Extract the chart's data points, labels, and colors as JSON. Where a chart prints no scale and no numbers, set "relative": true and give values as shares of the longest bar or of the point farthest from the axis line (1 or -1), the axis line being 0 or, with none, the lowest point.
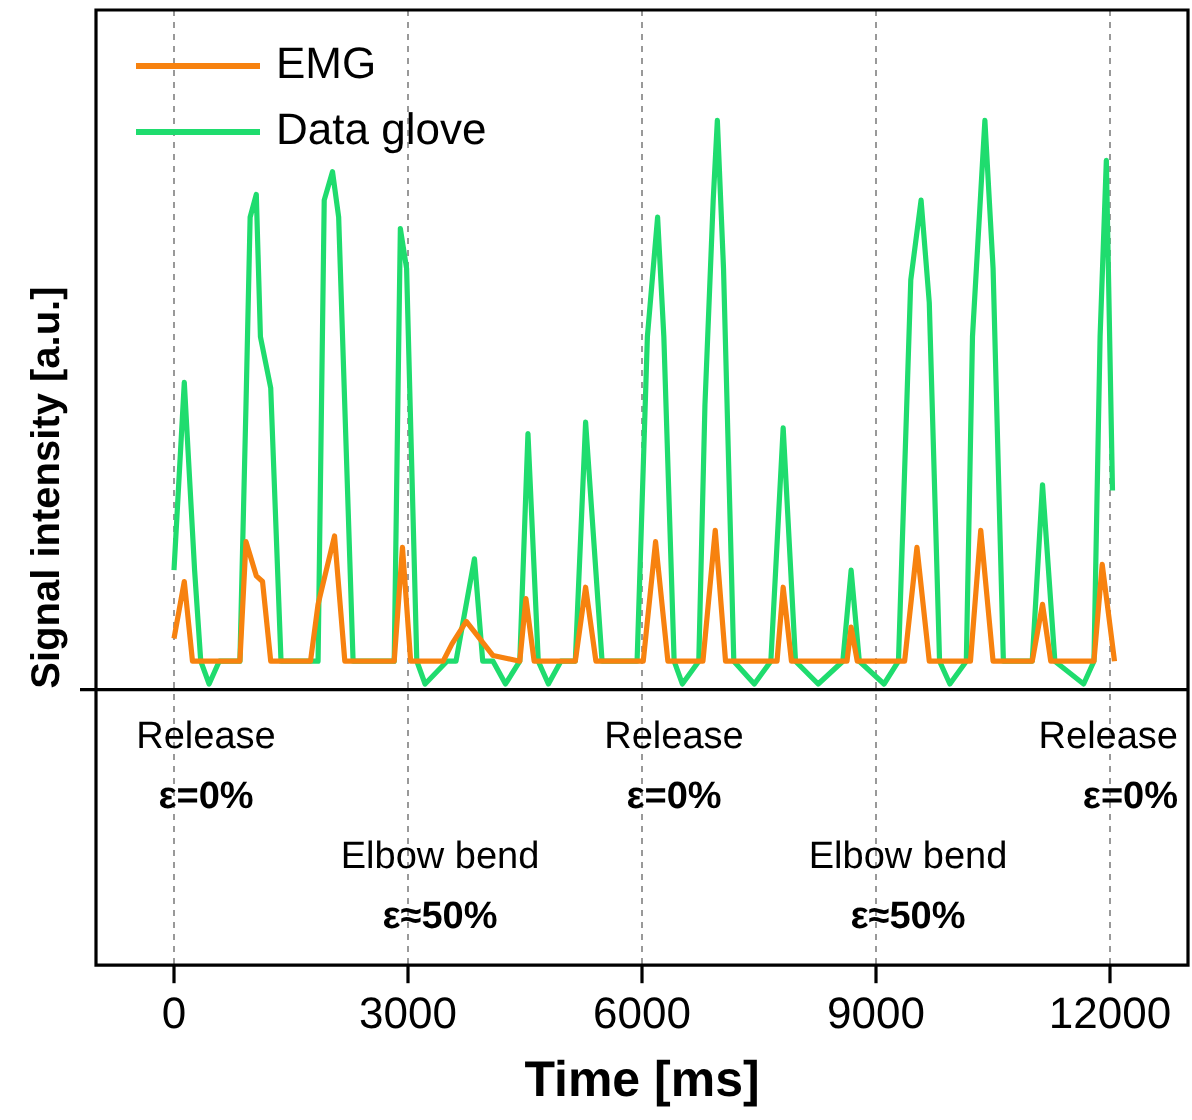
{
  "chart_data": {
    "type": "line",
    "xlabel": "Time [ms]",
    "ylabel": "Signal intensity [a.u.]",
    "relative": true,
    "tick_labels": "x",
    "grid": "x",
    "legend": "top left",
    "line_style": "solid",
    "marker": "none",
    "xlim": [
      -1000,
      13000
    ],
    "xticks": [
      0,
      3000,
      6000,
      9000,
      12000
    ],
    "annotations": [
      "Release",
      "ε=0%",
      "Elbow bend",
      "ε≈50%",
      "Release",
      "ε=0%",
      "Elbow bend",
      "ε≈50%",
      "Release",
      "ε=0%"
    ],
    "series": [
      {
        "name": "EMG",
        "color": "#f7820f",
        "x": [
          0,
          132,
          237,
          845,
          923,
          1055,
          1135,
          1240,
          1750,
          1847,
          2058,
          2190,
          2823,
          2929,
          3034,
          3450,
          3562,
          3747,
          4090,
          4433,
          4512,
          4617,
          5145,
          5277,
          5409,
          6016,
          6174,
          6332,
          6781,
          6939,
          7071,
          7731,
          7810,
          7916,
          8628,
          8681,
          8760,
          9367,
          9525,
          9683,
          10211,
          10343,
          10501,
          11003,
          11135,
          11240,
          11794,
          11900,
          12058
        ],
        "values": [
          0.09,
          0.19,
          0.05,
          0.05,
          0.26,
          0.2,
          0.19,
          0.05,
          0.05,
          0.15,
          0.27,
          0.05,
          0.05,
          0.25,
          0.05,
          0.05,
          0.08,
          0.12,
          0.06,
          0.05,
          0.16,
          0.05,
          0.05,
          0.18,
          0.05,
          0.05,
          0.26,
          0.05,
          0.05,
          0.28,
          0.05,
          0.05,
          0.18,
          0.05,
          0.05,
          0.11,
          0.05,
          0.05,
          0.25,
          0.05,
          0.05,
          0.28,
          0.05,
          0.05,
          0.15,
          0.05,
          0.05,
          0.22,
          0.05
        ]
      },
      {
        "name": "Data glove",
        "color": "#1fdc6e",
        "x": [
          0,
          132,
          264,
          343,
          450,
          580,
          845,
          923,
          976,
          1055,
          1108,
          1240,
          1372,
          1847,
          1926,
          2032,
          2111,
          2296,
          2823,
          2902,
          2982,
          3113,
          3219,
          3500,
          3615,
          3852,
          3958,
          4090,
          4250,
          4433,
          4538,
          4670,
          4800,
          4960,
          5145,
          5277,
          5488,
          5937,
          6069,
          6200,
          6280,
          6412,
          6517,
          6728,
          6807,
          6913,
          6966,
          7045,
          7177,
          7440,
          7652,
          7810,
          7968,
          8259,
          8575,
          8681,
          8786,
          9103,
          9288,
          9446,
          9578,
          9683,
          9815,
          9947,
          10158,
          10237,
          10396,
          10501,
          10633,
          11003,
          11135,
          11293,
          11662,
          11794,
          11873,
          11953,
          11979,
          12032
        ],
        "values": [
          0.21,
          0.54,
          0.21,
          0.05,
          0.01,
          0.05,
          0.05,
          0.5,
          0.83,
          0.87,
          0.62,
          0.53,
          0.05,
          0.05,
          0.86,
          0.91,
          0.83,
          0.05,
          0.05,
          0.81,
          0.74,
          0.05,
          0.01,
          0.05,
          0.05,
          0.23,
          0.05,
          0.05,
          0.01,
          0.05,
          0.45,
          0.05,
          0.01,
          0.05,
          0.05,
          0.47,
          0.05,
          0.05,
          0.62,
          0.83,
          0.62,
          0.05,
          0.01,
          0.05,
          0.5,
          0.86,
          1.0,
          0.74,
          0.05,
          0.01,
          0.05,
          0.46,
          0.05,
          0.01,
          0.05,
          0.21,
          0.05,
          0.01,
          0.05,
          0.72,
          0.86,
          0.68,
          0.05,
          0.01,
          0.05,
          0.62,
          1.0,
          0.74,
          0.05,
          0.05,
          0.36,
          0.05,
          0.01,
          0.05,
          0.62,
          0.93,
          0.74,
          0.35
        ]
      }
    ]
  }
}
